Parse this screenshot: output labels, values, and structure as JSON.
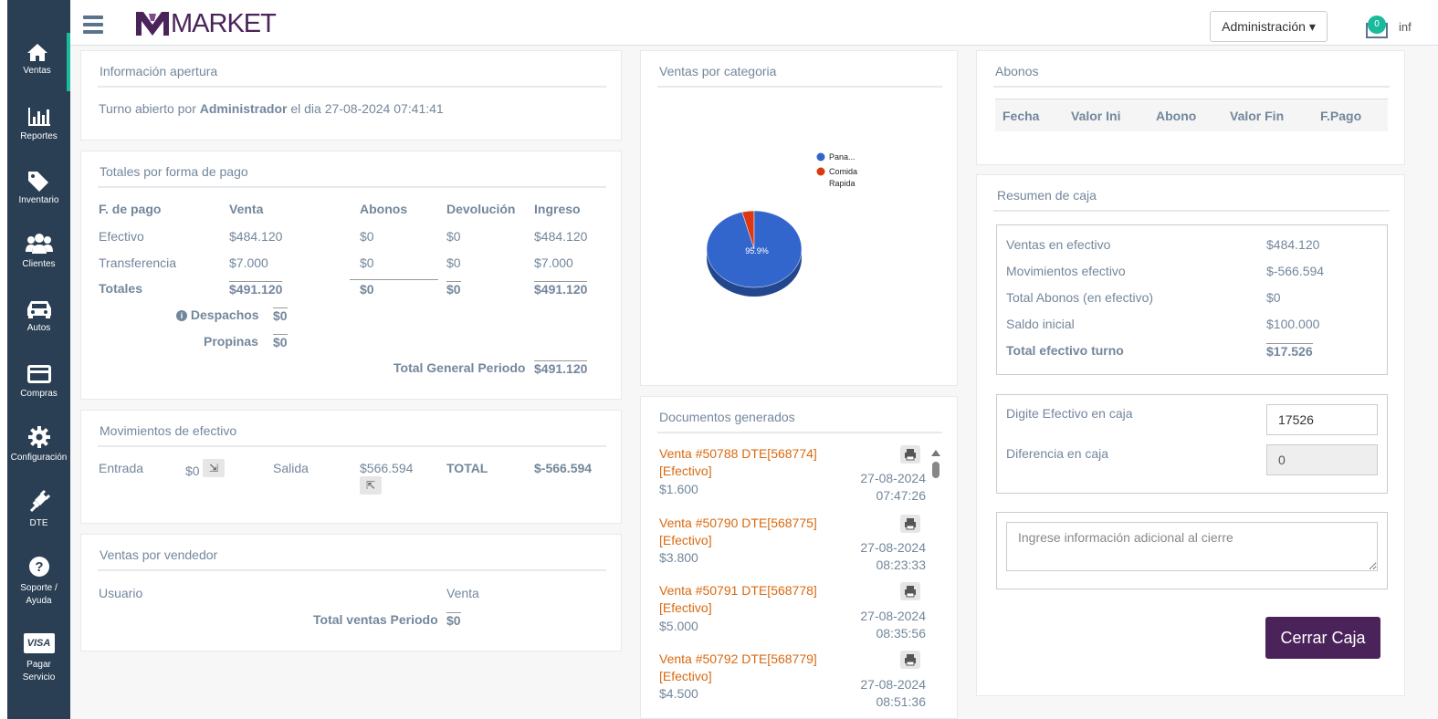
{
  "sidebar": {
    "items": [
      {
        "label": "Ventas",
        "icon": "home-icon"
      },
      {
        "label": "Reportes",
        "icon": "bar-chart-icon"
      },
      {
        "label": "Inventario",
        "icon": "tags-icon"
      },
      {
        "label": "Clientes",
        "icon": "users-icon"
      },
      {
        "label": "Autos",
        "icon": "car-icon"
      },
      {
        "label": "Compras",
        "icon": "credit-card-icon"
      },
      {
        "label": "Configuración",
        "icon": "gear-icon"
      },
      {
        "label": "DTE",
        "icon": "plug-icon"
      },
      {
        "label": "Soporte / Ayuda",
        "icon": "question-icon"
      },
      {
        "label": "Pagar Servicio",
        "icon": "visa-icon",
        "icon_text": "VISA"
      }
    ]
  },
  "header": {
    "logo_text": "MARKET",
    "admin_menu": "Administración ▾",
    "mail_badge": "0",
    "user": "inf"
  },
  "apertura": {
    "title": "Información apertura",
    "text_prefix": "Turno abierto por",
    "user": "Administrador",
    "text_mid": "el dia",
    "datetime": "27-08-2024 07:41:41"
  },
  "totales": {
    "title": "Totales por forma de pago",
    "headers": [
      "F. de pago",
      "Venta",
      "Abonos",
      "Devolución",
      "Ingreso"
    ],
    "rows": [
      [
        "Efectivo",
        "$484.120",
        "$0",
        "$0",
        "$484.120"
      ],
      [
        "Transferencia",
        "$7.000",
        "$0",
        "$0",
        "$7.000"
      ],
      [
        "Totales",
        "$491.120",
        "$0",
        "$0",
        "$491.120"
      ]
    ],
    "despachos_label": "Despachos",
    "despachos_value": "$0",
    "propinas_label": "Propinas",
    "propinas_value": "$0",
    "total_general_label": "Total General Periodo",
    "total_general_value": "$491.120"
  },
  "movimientos": {
    "title": "Movimientos de efectivo",
    "entrada_label": "Entrada",
    "entrada_value": "$0",
    "salida_label": "Salida",
    "salida_value": "$566.594",
    "total_label": "TOTAL",
    "total_value": "$-566.594"
  },
  "vendedor": {
    "title": "Ventas por vendedor",
    "col_usuario": "Usuario",
    "col_venta": "Venta",
    "total_label": "Total ventas Periodo",
    "total_value": "$0"
  },
  "categoria": {
    "title": "Ventas por categoria"
  },
  "chart_data": {
    "type": "pie",
    "labels": [
      "Pana...",
      "Comida Rapida"
    ],
    "values": [
      95.9,
      4.1
    ],
    "colors": [
      "#3366cc",
      "#dc3912"
    ],
    "data_labels": [
      "95.9%"
    ],
    "legend": "right"
  },
  "documentos": {
    "title": "Documentos generados",
    "items": [
      {
        "line1": "Venta #50788 DTE[568774]",
        "line2": "[Efectivo]",
        "amount": "$1.600",
        "date": "27-08-2024",
        "time": "07:47:26"
      },
      {
        "line1": "Venta #50790 DTE[568775]",
        "line2": "[Efectivo]",
        "amount": "$3.800",
        "date": "27-08-2024",
        "time": "08:23:33"
      },
      {
        "line1": "Venta #50791 DTE[568778]",
        "line2": "[Efectivo]",
        "amount": "$5.000",
        "date": "27-08-2024",
        "time": "08:35:56"
      },
      {
        "line1": "Venta #50792 DTE[568779]",
        "line2": "[Efectivo]",
        "amount": "$4.500",
        "date": "27-08-2024",
        "time": "08:51:36"
      }
    ]
  },
  "abonos": {
    "title": "Abonos",
    "headers": [
      "Fecha",
      "Valor Ini",
      "Abono",
      "Valor Fin",
      "F.Pago"
    ]
  },
  "resumen": {
    "title": "Resumen de caja",
    "rows": [
      {
        "label": "Ventas en efectivo",
        "value": "$484.120"
      },
      {
        "label": "Movimientos efectivo",
        "value": "$-566.594"
      },
      {
        "label": "Total Abonos (en efectivo)",
        "value": "$0"
      },
      {
        "label": "Saldo inicial",
        "value": "$100.000"
      },
      {
        "label": "Total efectivo turno",
        "value": "$17.526"
      }
    ],
    "efectivo_label": "Digite Efectivo en caja",
    "efectivo_value": "17526",
    "diferencia_label": "Diferencia en caja",
    "diferencia_value": "0",
    "notes_placeholder": "Ingrese información adicional al cierre",
    "close_button": "Cerrar Caja"
  }
}
